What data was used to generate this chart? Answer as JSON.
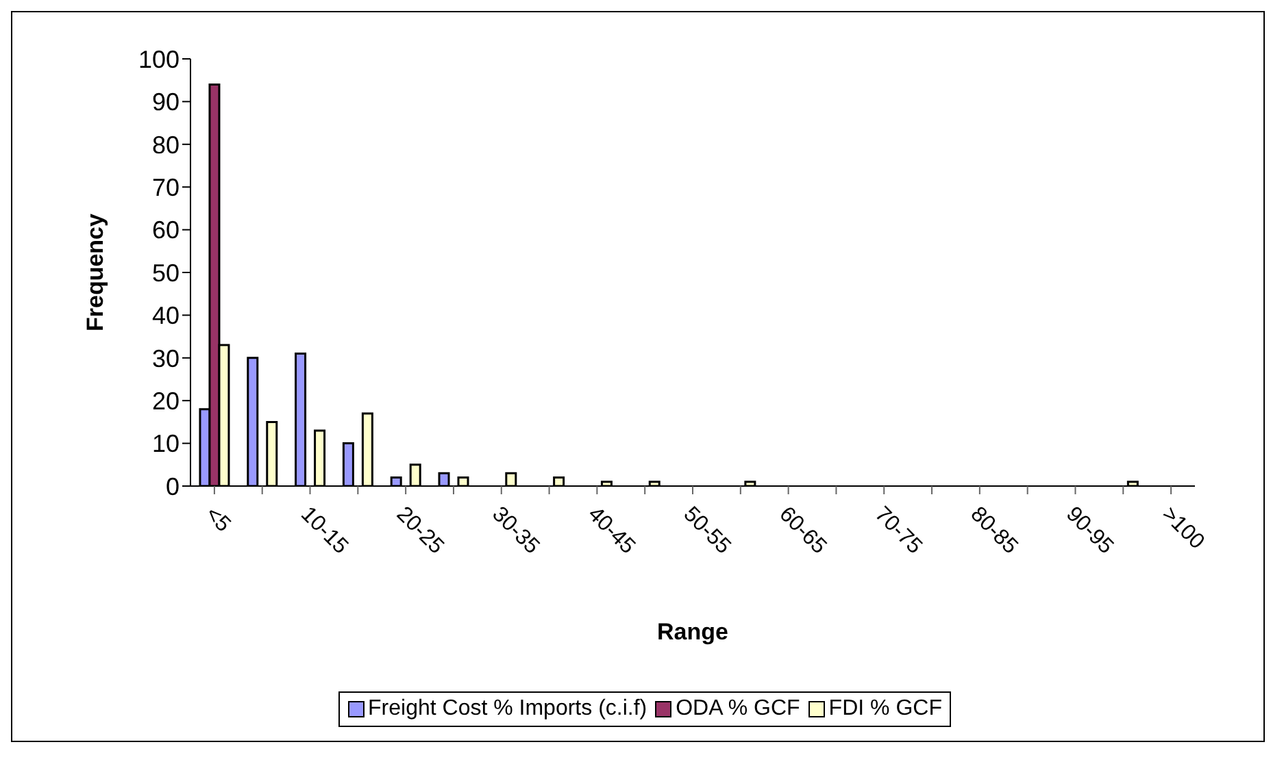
{
  "chart_data": {
    "type": "bar",
    "xlabel": "Range",
    "ylabel": "Frequency",
    "categories": [
      "<5",
      null,
      "10-15",
      null,
      "20-25",
      null,
      "30-35",
      null,
      "40-45",
      null,
      "50-55",
      null,
      "60-65",
      null,
      "70-75",
      null,
      "80-85",
      null,
      "90-95",
      null,
      ">100"
    ],
    "series": [
      {
        "name": "Freight Cost % Imports (c.i.f)",
        "color": "#9999ff",
        "values": [
          18,
          30,
          31,
          10,
          2,
          3,
          0,
          0,
          0,
          0,
          0,
          0,
          0,
          0,
          0,
          0,
          0,
          0,
          0,
          0,
          0
        ]
      },
      {
        "name": "ODA % GCF",
        "color": "#993366",
        "values": [
          94,
          0,
          0,
          0,
          0,
          0,
          0,
          0,
          0,
          0,
          0,
          0,
          0,
          0,
          0,
          0,
          0,
          0,
          0,
          0,
          0
        ]
      },
      {
        "name": "FDI % GCF",
        "color": "#ffffcc",
        "values": [
          33,
          15,
          13,
          17,
          5,
          2,
          3,
          2,
          1,
          1,
          0,
          1,
          0,
          0,
          0,
          0,
          0,
          0,
          0,
          1,
          0
        ]
      }
    ],
    "ylim": [
      0,
      100
    ],
    "yticks": [
      0,
      10,
      20,
      30,
      40,
      50,
      60,
      70,
      80,
      90,
      100
    ],
    "grid": false,
    "legend": "bottom"
  }
}
